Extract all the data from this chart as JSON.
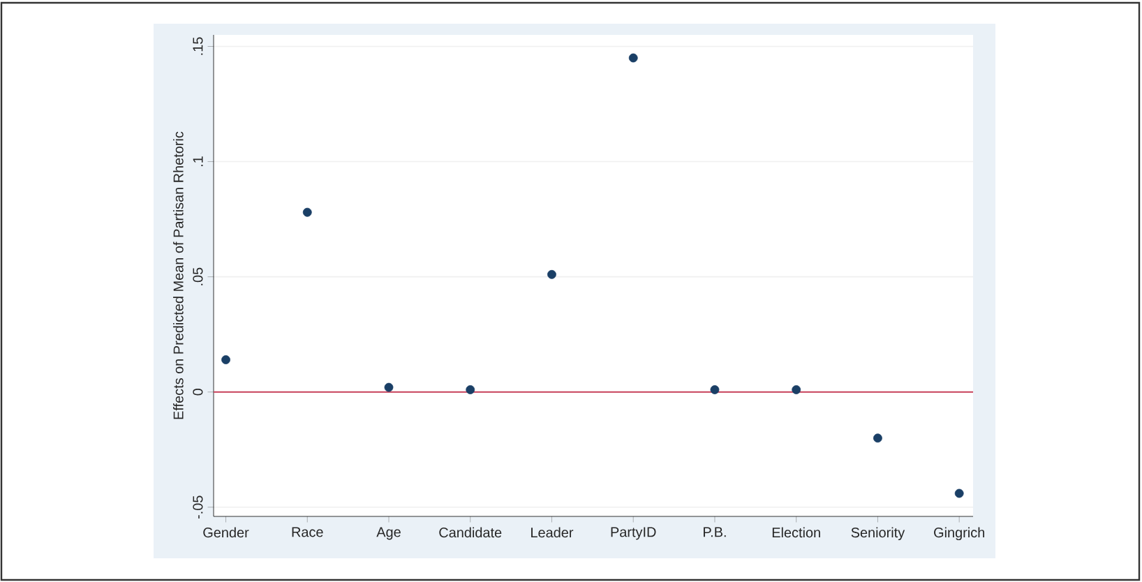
{
  "chart_data": {
    "type": "scatter",
    "ylabel": "Effects on Predicted Mean of Partisan Rhetoric",
    "categories": [
      "Gender",
      "Race",
      "Age",
      "Candidate",
      "Leader",
      "PartyID",
      "P.B.",
      "Election",
      "Seniority",
      "Gingrich"
    ],
    "series": [
      {
        "color": "#1a3f66",
        "values": [
          0.014,
          0.078,
          0.002,
          0.001,
          0.051,
          0.145,
          0.001,
          0.001,
          -0.02,
          -0.044
        ]
      }
    ],
    "ylim": [
      -0.054,
      0.155
    ],
    "yticks": [
      {
        "value": -0.05,
        "label": "-.05"
      },
      0,
      {
        "value": 0.05,
        "label": ".05"
      },
      {
        "value": 0.1,
        "label": ".1"
      },
      {
        "value": 0.15,
        "label": ".15"
      }
    ],
    "ref_lines": [
      {
        "axis": "y",
        "value": 0,
        "color": "#c8405a"
      }
    ],
    "grid": "y",
    "marker": "circle"
  }
}
